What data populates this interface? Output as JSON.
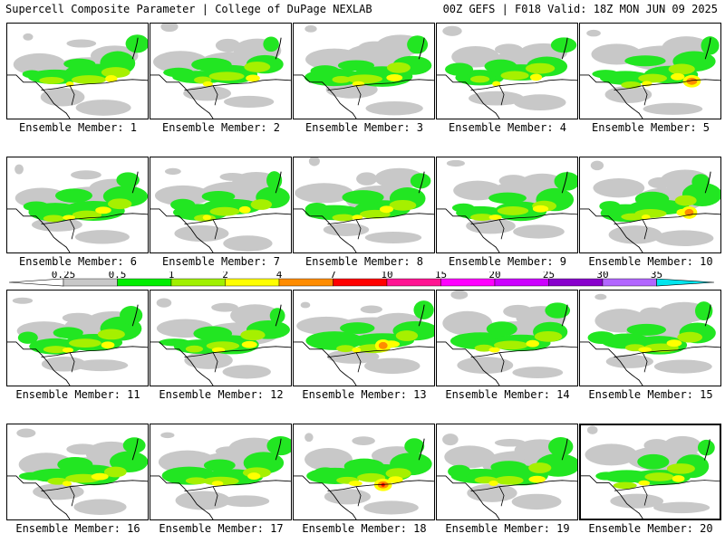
{
  "header": {
    "left": "Supercell Composite Parameter | College of DuPage NEXLAB",
    "right": "00Z GEFS | F018 Valid: 18Z MON JUN 09 2025"
  },
  "members": [
    {
      "label": "Ensemble Member: 1",
      "selected": false
    },
    {
      "label": "Ensemble Member: 2",
      "selected": false
    },
    {
      "label": "Ensemble Member: 3",
      "selected": false
    },
    {
      "label": "Ensemble Member: 4",
      "selected": false
    },
    {
      "label": "Ensemble Member: 5",
      "selected": false
    },
    {
      "label": "Ensemble Member: 6",
      "selected": false
    },
    {
      "label": "Ensemble Member: 7",
      "selected": false
    },
    {
      "label": "Ensemble Member: 8",
      "selected": false
    },
    {
      "label": "Ensemble Member: 9",
      "selected": false
    },
    {
      "label": "Ensemble Member: 10",
      "selected": false
    },
    {
      "label": "Ensemble Member: 11",
      "selected": false
    },
    {
      "label": "Ensemble Member: 12",
      "selected": false
    },
    {
      "label": "Ensemble Member: 13",
      "selected": false
    },
    {
      "label": "Ensemble Member: 14",
      "selected": false
    },
    {
      "label": "Ensemble Member: 15",
      "selected": false
    },
    {
      "label": "Ensemble Member: 16",
      "selected": false
    },
    {
      "label": "Ensemble Member: 17",
      "selected": false
    },
    {
      "label": "Ensemble Member: 18",
      "selected": false
    },
    {
      "label": "Ensemble Member: 19",
      "selected": false
    },
    {
      "label": "Ensemble Member: 20",
      "selected": true
    }
  ],
  "colorbar": {
    "ticks": [
      "0.25",
      "0.5",
      "1",
      "2",
      "4",
      "7",
      "10",
      "15",
      "20",
      "25",
      "30",
      "35"
    ],
    "colors": [
      "#ffffff",
      "#c8c8c8",
      "#00ee00",
      "#a0f000",
      "#ffff00",
      "#ff8c00",
      "#ff0000",
      "#ff1493",
      "#ff00ff",
      "#cc00ff",
      "#8800cc",
      "#b266ff",
      "#00e5ee"
    ]
  },
  "palette": {
    "gray": "#c8c8c8",
    "green": "#22e622",
    "lime": "#a6f000",
    "yellow": "#ffff00",
    "orange": "#ff8c00",
    "red": "#ff0000"
  }
}
